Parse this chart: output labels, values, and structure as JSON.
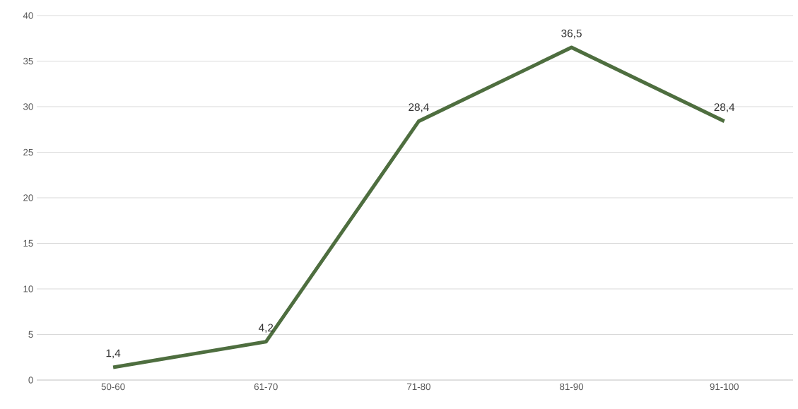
{
  "chart_data": {
    "type": "line",
    "categories": [
      "50-60",
      "61-70",
      "71-80",
      "81-90",
      "91-100"
    ],
    "series": [
      {
        "color": "#4e6e3f",
        "values": [
          1.4,
          4.2,
          28.4,
          36.5,
          28.4
        ],
        "value_labels": [
          "1,4",
          "4,2",
          "28,4",
          "36,5",
          "28,4"
        ]
      }
    ],
    "ylim": [
      0,
      40
    ],
    "yticks": [
      0,
      5,
      10,
      15,
      20,
      25,
      30,
      35,
      40
    ],
    "grid": "y"
  }
}
